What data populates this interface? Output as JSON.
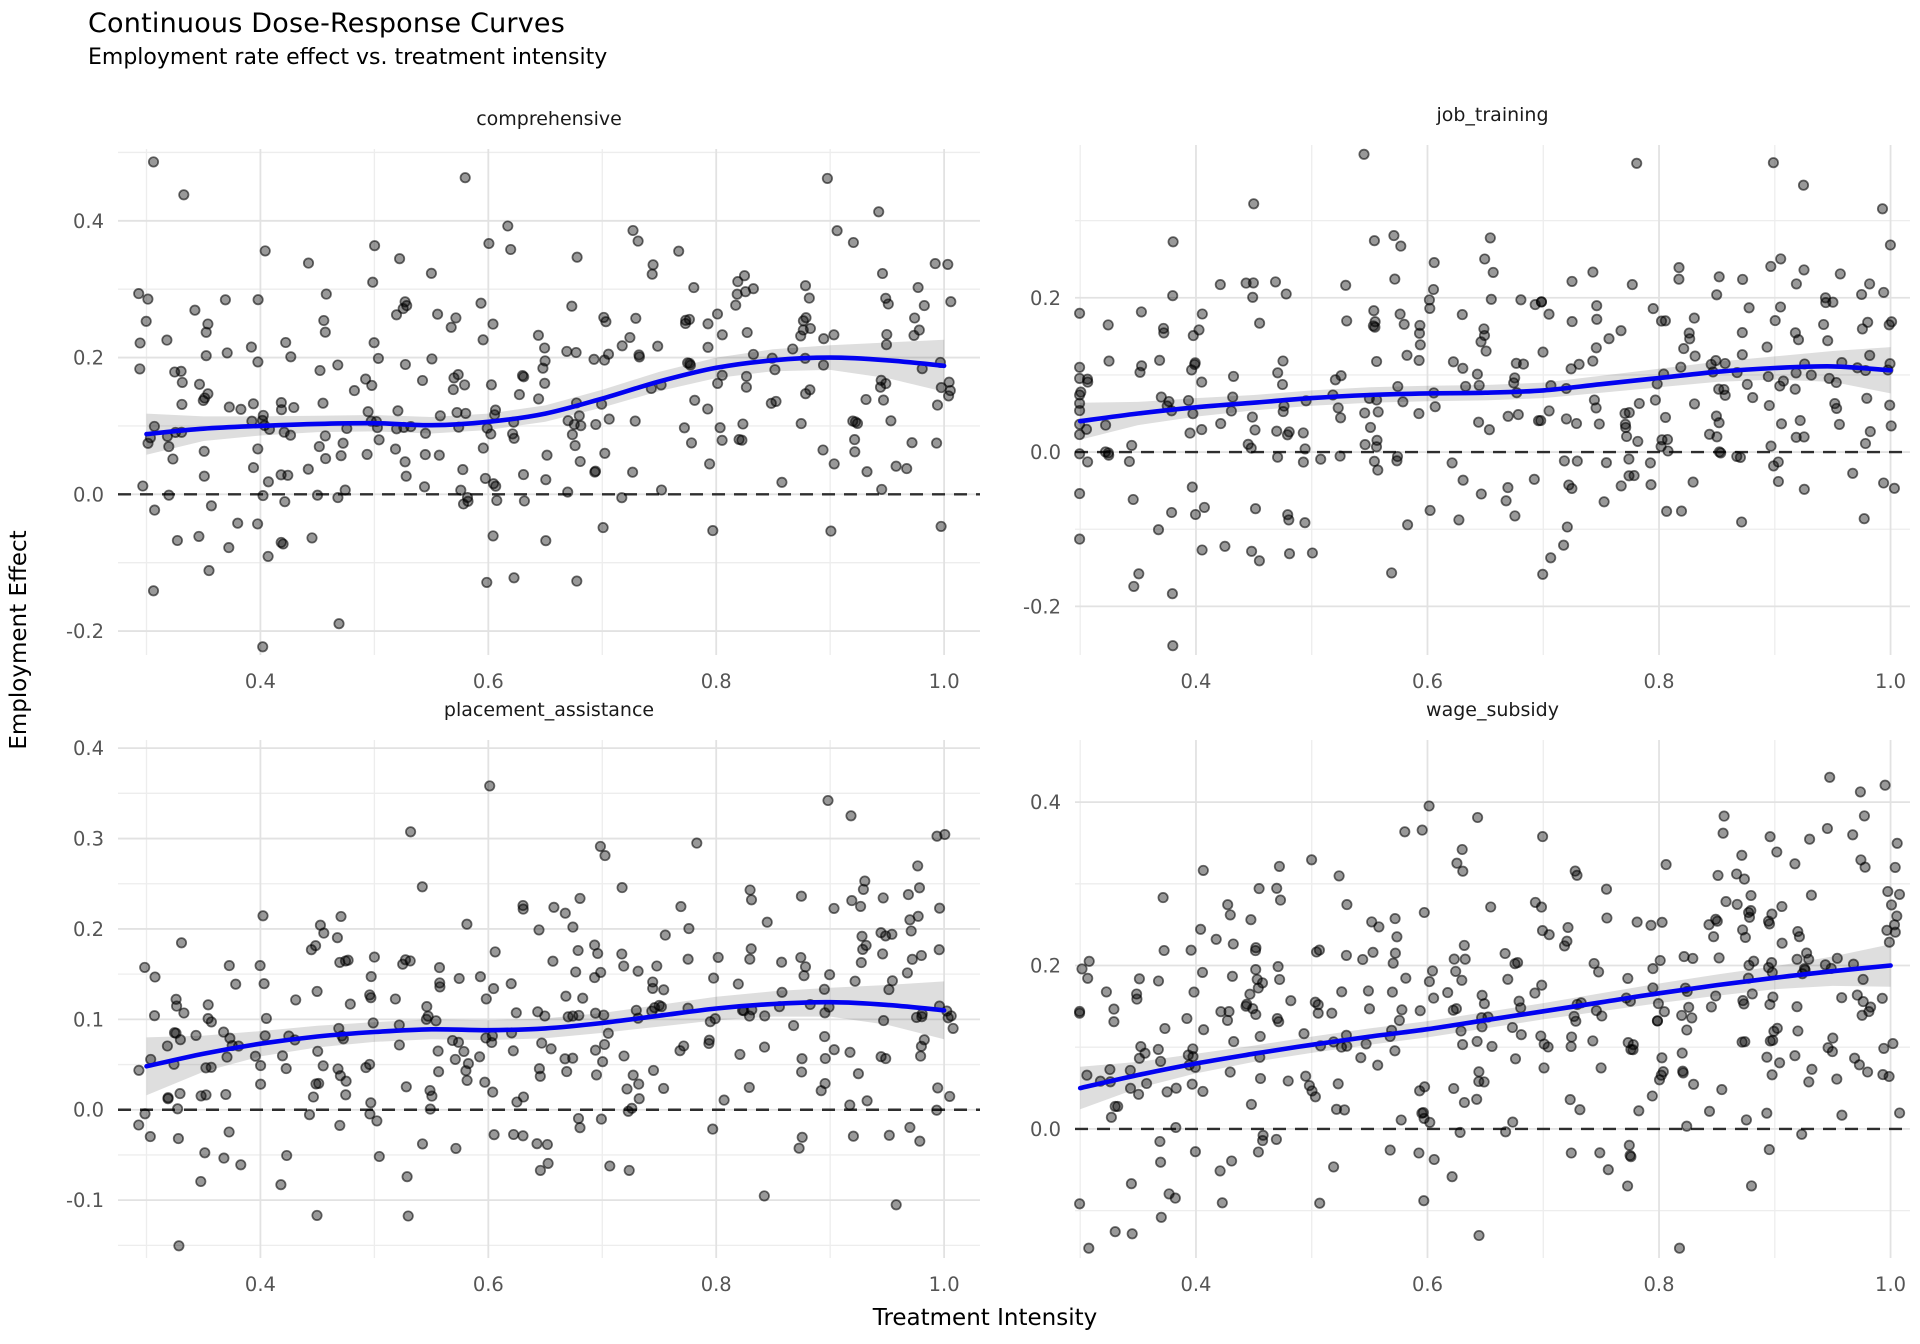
{
  "title": "Continuous Dose-Response Curves",
  "subtitle": "Employment rate effect vs. treatment intensity",
  "axes": {
    "xlabel": "Treatment Intensity",
    "ylabel": "Employment Effect"
  },
  "colors": {
    "curve": "#0202f0",
    "ribbon": "rgba(70,70,70,0.18)",
    "point_fill": "rgba(0,0,0,0.40)",
    "point_edge": "rgba(0,0,0,0.58)",
    "grid_major": "#e2e2e2",
    "grid_minor": "#ededed",
    "zero_line": "#2e2e2e",
    "tick_text": "#555555",
    "facet_text": "#1a1a1a"
  },
  "chart_data": {
    "type": "scatter",
    "title": "Continuous Dose-Response Curves",
    "subtitle": "Employment rate effect vs. treatment intensity",
    "xlabel": "Treatment Intensity",
    "ylabel": "Employment Effect",
    "legend": "none",
    "grid": "on",
    "x_ticks": [
      0.4,
      0.6,
      0.8,
      1.0
    ],
    "x_minor_ticks": [
      0.3,
      0.5,
      0.7,
      0.9
    ],
    "facets": [
      {
        "name": "comprehensive",
        "xlim": [
          0.275,
          1.0315
        ],
        "ylim": [
          -0.235,
          0.505
        ],
        "y_ticks": [
          -0.2,
          0.0,
          0.2,
          0.4
        ],
        "y_minor_ticks": [
          -0.1,
          0.1,
          0.3,
          0.5
        ],
        "zero_line": 0.0,
        "smooth_curve": [
          [
            0.3,
            0.088,
            0.03
          ],
          [
            0.35,
            0.096,
            0.018
          ],
          [
            0.4,
            0.1,
            0.014
          ],
          [
            0.45,
            0.103,
            0.012
          ],
          [
            0.5,
            0.104,
            0.012
          ],
          [
            0.55,
            0.101,
            0.012
          ],
          [
            0.6,
            0.106,
            0.012
          ],
          [
            0.65,
            0.118,
            0.012
          ],
          [
            0.7,
            0.14,
            0.013
          ],
          [
            0.75,
            0.165,
            0.014
          ],
          [
            0.8,
            0.185,
            0.015
          ],
          [
            0.85,
            0.196,
            0.016
          ],
          [
            0.9,
            0.2,
            0.018
          ],
          [
            0.95,
            0.196,
            0.026
          ],
          [
            1.0,
            0.188,
            0.038
          ]
        ],
        "scatter": {
          "n": 320,
          "seed": 11,
          "y_sd": 0.115,
          "x_min": 0.3,
          "x_step": 0.025,
          "x_levels": 29,
          "x_jitter": 0.008
        }
      },
      {
        "name": "job_training",
        "xlim": [
          0.2955,
          1.0168
        ],
        "ylim": [
          -0.263,
          0.398
        ],
        "y_ticks": [
          -0.2,
          0.0,
          0.2
        ],
        "y_minor_ticks": [
          -0.1,
          0.1,
          0.3
        ],
        "zero_line": 0.0,
        "smooth_curve": [
          [
            0.3,
            0.04,
            0.024
          ],
          [
            0.35,
            0.05,
            0.015
          ],
          [
            0.4,
            0.058,
            0.012
          ],
          [
            0.45,
            0.064,
            0.01
          ],
          [
            0.5,
            0.07,
            0.01
          ],
          [
            0.55,
            0.074,
            0.01
          ],
          [
            0.6,
            0.076,
            0.01
          ],
          [
            0.65,
            0.077,
            0.01
          ],
          [
            0.7,
            0.08,
            0.01
          ],
          [
            0.75,
            0.088,
            0.011
          ],
          [
            0.8,
            0.096,
            0.012
          ],
          [
            0.85,
            0.104,
            0.013
          ],
          [
            0.9,
            0.109,
            0.015
          ],
          [
            0.95,
            0.111,
            0.02
          ],
          [
            1.0,
            0.106,
            0.03
          ]
        ],
        "scatter": {
          "n": 340,
          "seed": 22,
          "y_sd": 0.1,
          "x_min": 0.3,
          "x_step": 0.025,
          "x_levels": 29,
          "x_jitter": 0.008
        }
      },
      {
        "name": "placement_assistance",
        "xlim": [
          0.275,
          1.0315
        ],
        "ylim": [
          -0.164,
          0.409
        ],
        "y_ticks": [
          -0.1,
          0.0,
          0.1,
          0.2,
          0.3,
          0.4
        ],
        "y_minor_ticks": [
          -0.15,
          -0.05,
          0.05,
          0.15,
          0.25,
          0.35
        ],
        "zero_line": 0.0,
        "smooth_curve": [
          [
            0.3,
            0.048,
            0.032
          ],
          [
            0.35,
            0.062,
            0.02
          ],
          [
            0.4,
            0.073,
            0.014
          ],
          [
            0.45,
            0.081,
            0.012
          ],
          [
            0.5,
            0.086,
            0.011
          ],
          [
            0.55,
            0.089,
            0.011
          ],
          [
            0.6,
            0.088,
            0.011
          ],
          [
            0.65,
            0.09,
            0.011
          ],
          [
            0.7,
            0.096,
            0.011
          ],
          [
            0.75,
            0.104,
            0.012
          ],
          [
            0.8,
            0.112,
            0.013
          ],
          [
            0.85,
            0.117,
            0.014
          ],
          [
            0.9,
            0.119,
            0.016
          ],
          [
            0.95,
            0.116,
            0.022
          ],
          [
            1.0,
            0.11,
            0.032
          ]
        ],
        "scatter": {
          "n": 330,
          "seed": 33,
          "y_sd": 0.085,
          "x_min": 0.3,
          "x_step": 0.025,
          "x_levels": 29,
          "x_jitter": 0.008
        }
      },
      {
        "name": "wage_subsidy",
        "xlim": [
          0.2955,
          1.0168
        ],
        "ylim": [
          -0.158,
          0.476
        ],
        "y_ticks": [
          0.0,
          0.2,
          0.4
        ],
        "y_minor_ticks": [
          -0.1,
          0.1,
          0.3
        ],
        "zero_line": 0.0,
        "smooth_curve": [
          [
            0.3,
            0.05,
            0.026
          ],
          [
            0.35,
            0.066,
            0.016
          ],
          [
            0.4,
            0.08,
            0.012
          ],
          [
            0.45,
            0.092,
            0.01
          ],
          [
            0.5,
            0.103,
            0.01
          ],
          [
            0.55,
            0.113,
            0.01
          ],
          [
            0.6,
            0.122,
            0.01
          ],
          [
            0.65,
            0.133,
            0.01
          ],
          [
            0.7,
            0.144,
            0.01
          ],
          [
            0.75,
            0.155,
            0.011
          ],
          [
            0.8,
            0.166,
            0.012
          ],
          [
            0.85,
            0.176,
            0.013
          ],
          [
            0.9,
            0.185,
            0.014
          ],
          [
            0.95,
            0.193,
            0.018
          ],
          [
            1.0,
            0.2,
            0.026
          ]
        ],
        "scatter": {
          "n": 400,
          "seed": 44,
          "y_sd": 0.1,
          "x_min": 0.3,
          "x_step": 0.025,
          "x_levels": 29,
          "x_jitter": 0.008
        }
      }
    ]
  }
}
